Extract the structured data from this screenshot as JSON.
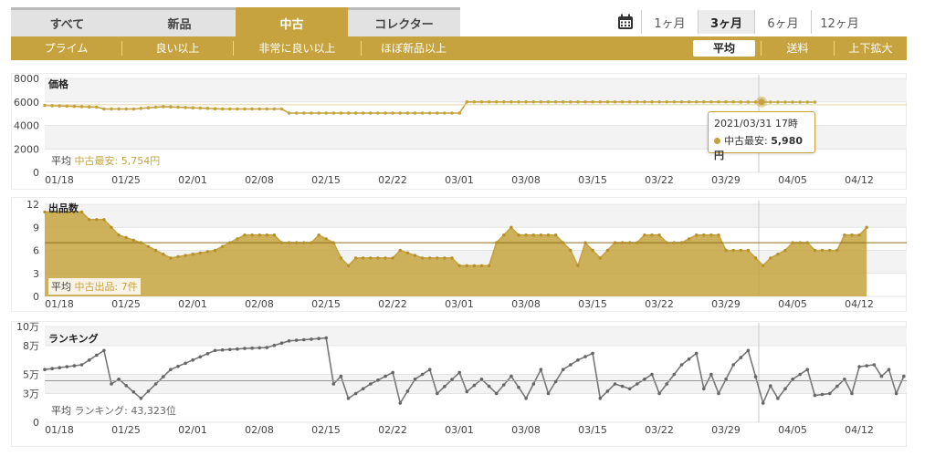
{
  "tabs": [
    {
      "label": "すべて",
      "accent": "#c0392b",
      "active": false
    },
    {
      "label": "新品",
      "accent": "#7ec8b0",
      "active": false
    },
    {
      "label": "中古",
      "accent": "#c6a33e",
      "active": true
    },
    {
      "label": "コレクター",
      "accent": "#aaaaaa",
      "active": false
    }
  ],
  "range": {
    "calendar_icon": "calendar-icon",
    "items": [
      {
        "label": "1ヶ月",
        "active": false
      },
      {
        "label": "3ヶ月",
        "active": true
      },
      {
        "label": "6ヶ月",
        "active": false
      },
      {
        "label": "12ヶ月",
        "active": false
      }
    ]
  },
  "filters": {
    "items": [
      "プライム",
      "良い以上",
      "非常に良い以上",
      "ほぼ新品以上"
    ],
    "avg_button": "平均",
    "shipping": "送料",
    "zoom": "上下拡大"
  },
  "colors": {
    "gold": "#c6a33e",
    "gray_series": "#777777"
  },
  "x_dates": [
    "01/18",
    "01/25",
    "02/01",
    "02/08",
    "02/15",
    "02/22",
    "03/01",
    "03/08",
    "03/15",
    "03/22",
    "03/29",
    "04/05",
    "04/12"
  ],
  "tooltip": {
    "datetime": "2021/03/31 17時",
    "label": "中古最安:",
    "value": "5,980円"
  },
  "chart_data": [
    {
      "type": "line",
      "title": "価格",
      "ylim": [
        0,
        8000
      ],
      "yticks": [
        "0",
        "2000",
        "4000",
        "6000",
        "8000"
      ],
      "average_label": "平均",
      "average_series": "中古最安:",
      "average_value": "5,754円",
      "series": [
        {
          "name": "中古最安",
          "points": [
            [
              0,
              5700
            ],
            [
              7,
              5560
            ],
            [
              8,
              5400
            ],
            [
              12,
              5400
            ],
            [
              16,
              5600
            ],
            [
              24,
              5400
            ],
            [
              32,
              5400
            ],
            [
              33,
              5050
            ],
            [
              47,
              5050
            ],
            [
              56,
              5050
            ],
            [
              57,
              6000
            ],
            [
              90,
              6000
            ],
            [
              98,
              5980
            ],
            [
              104,
              5980
            ]
          ]
        }
      ]
    },
    {
      "type": "area",
      "title": "出品数",
      "ylim": [
        0,
        12
      ],
      "yticks": [
        "0",
        "3",
        "6",
        "9",
        "12"
      ],
      "average_label": "平均",
      "average_series": "中古出品:",
      "average_value": "7件",
      "series": [
        {
          "name": "中古出品",
          "points": [
            [
              0,
              11
            ],
            [
              5,
              11
            ],
            [
              6,
              10
            ],
            [
              8,
              10
            ],
            [
              10,
              8
            ],
            [
              13,
              7
            ],
            [
              17,
              5
            ],
            [
              23,
              6
            ],
            [
              27,
              8
            ],
            [
              31,
              8
            ],
            [
              32,
              7
            ],
            [
              36,
              7
            ],
            [
              37,
              8
            ],
            [
              39,
              7
            ],
            [
              40,
              5
            ],
            [
              41,
              4
            ],
            [
              42,
              5
            ],
            [
              47,
              5
            ],
            [
              48,
              6
            ],
            [
              51,
              5
            ],
            [
              55,
              5
            ],
            [
              56,
              4
            ],
            [
              60,
              4
            ],
            [
              61,
              7
            ],
            [
              62,
              8
            ],
            [
              63,
              9
            ],
            [
              64,
              8
            ],
            [
              69,
              8
            ],
            [
              71,
              6
            ],
            [
              72,
              4
            ],
            [
              73,
              7
            ],
            [
              74,
              6
            ],
            [
              75,
              5
            ],
            [
              77,
              7
            ],
            [
              80,
              7
            ],
            [
              81,
              8
            ],
            [
              83,
              8
            ],
            [
              84,
              7
            ],
            [
              86,
              7
            ],
            [
              88,
              8
            ],
            [
              91,
              8
            ],
            [
              92,
              6
            ],
            [
              95,
              6
            ],
            [
              96,
              5
            ],
            [
              97,
              4
            ],
            [
              98,
              5
            ],
            [
              100,
              6
            ],
            [
              101,
              7
            ],
            [
              103,
              7
            ],
            [
              104,
              6
            ],
            [
              107,
              6
            ],
            [
              108,
              8
            ],
            [
              110,
              8
            ],
            [
              111,
              9
            ]
          ]
        }
      ]
    },
    {
      "type": "line",
      "title": "ランキング",
      "ylim": [
        0,
        100000
      ],
      "ytick_values": [
        0,
        30000,
        50000,
        80000,
        100000
      ],
      "yticks": [
        "0",
        "3万",
        "5万",
        "8万",
        "10万"
      ],
      "average_label": "平均",
      "average_series": "ランキング:",
      "average_value": "43,323位",
      "series": [
        {
          "name": "ランキング",
          "points": [
            [
              0,
              55000
            ],
            [
              5,
              60000
            ],
            [
              6,
              65000
            ],
            [
              7,
              70000
            ],
            [
              8,
              75000
            ],
            [
              9,
              40000
            ],
            [
              10,
              45000
            ],
            [
              13,
              25000
            ],
            [
              17,
              55000
            ],
            [
              23,
              75000
            ],
            [
              27,
              77000
            ],
            [
              30,
              78000
            ],
            [
              33,
              85000
            ],
            [
              38,
              88000
            ],
            [
              39,
              40000
            ],
            [
              40,
              48000
            ],
            [
              41,
              25000
            ],
            [
              42,
              30000
            ],
            [
              44,
              40000
            ],
            [
              46,
              48000
            ],
            [
              47,
              52000
            ],
            [
              48,
              20000
            ],
            [
              50,
              45000
            ],
            [
              52,
              55000
            ],
            [
              53,
              30000
            ],
            [
              56,
              52000
            ],
            [
              57,
              32000
            ],
            [
              59,
              45000
            ],
            [
              61,
              30000
            ],
            [
              63,
              48000
            ],
            [
              65,
              25000
            ],
            [
              67,
              55000
            ],
            [
              68,
              30000
            ],
            [
              70,
              55000
            ],
            [
              72,
              65000
            ],
            [
              74,
              72000
            ],
            [
              75,
              25000
            ],
            [
              77,
              40000
            ],
            [
              79,
              35000
            ],
            [
              82,
              50000
            ],
            [
              83,
              30000
            ],
            [
              86,
              60000
            ],
            [
              88,
              72000
            ],
            [
              89,
              35000
            ],
            [
              90,
              50000
            ],
            [
              91,
              30000
            ],
            [
              93,
              60000
            ],
            [
              95,
              75000
            ],
            [
              97,
              20000
            ],
            [
              98,
              38000
            ],
            [
              99,
              25000
            ],
            [
              101,
              45000
            ],
            [
              103,
              55000
            ],
            [
              104,
              28000
            ],
            [
              106,
              30000
            ],
            [
              108,
              45000
            ],
            [
              109,
              30000
            ],
            [
              110,
              58000
            ],
            [
              112,
              60000
            ],
            [
              113,
              48000
            ],
            [
              114,
              55000
            ],
            [
              115,
              30000
            ],
            [
              116,
              48000
            ]
          ]
        }
      ]
    }
  ]
}
